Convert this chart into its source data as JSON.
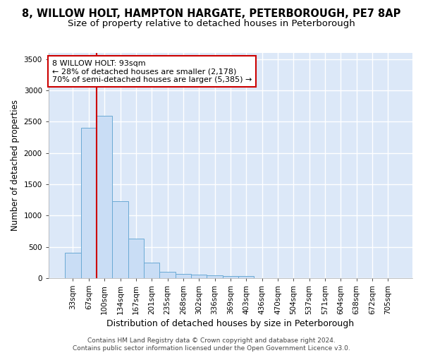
{
  "title1": "8, WILLOW HOLT, HAMPTON HARGATE, PETERBOROUGH, PE7 8AP",
  "title2": "Size of property relative to detached houses in Peterborough",
  "xlabel": "Distribution of detached houses by size in Peterborough",
  "ylabel": "Number of detached properties",
  "footer1": "Contains HM Land Registry data © Crown copyright and database right 2024.",
  "footer2": "Contains public sector information licensed under the Open Government Licence v3.0.",
  "categories": [
    "33sqm",
    "67sqm",
    "100sqm",
    "134sqm",
    "167sqm",
    "201sqm",
    "235sqm",
    "268sqm",
    "302sqm",
    "336sqm",
    "369sqm",
    "403sqm",
    "436sqm",
    "470sqm",
    "504sqm",
    "537sqm",
    "571sqm",
    "604sqm",
    "638sqm",
    "672sqm",
    "705sqm"
  ],
  "values": [
    400,
    2400,
    2600,
    1230,
    630,
    250,
    100,
    70,
    60,
    40,
    35,
    35,
    0,
    0,
    0,
    0,
    0,
    0,
    0,
    0,
    0
  ],
  "bar_color": "#c9ddf5",
  "bar_edge_color": "#6aaad4",
  "red_line_index": 2,
  "annotation_line1": "8 WILLOW HOLT: 93sqm",
  "annotation_line2": "← 28% of detached houses are smaller (2,178)",
  "annotation_line3": "70% of semi-detached houses are larger (5,385) →",
  "annotation_box_color": "#ffffff",
  "annotation_box_edge_color": "#cc0000",
  "ylim": [
    0,
    3600
  ],
  "yticks": [
    0,
    500,
    1000,
    1500,
    2000,
    2500,
    3000,
    3500
  ],
  "bg_color": "#dce8f8",
  "grid_color": "#ffffff",
  "title1_fontsize": 10.5,
  "title2_fontsize": 9.5,
  "xlabel_fontsize": 9,
  "ylabel_fontsize": 8.5,
  "tick_fontsize": 7.5,
  "annotation_fontsize": 8,
  "footer_fontsize": 6.5
}
